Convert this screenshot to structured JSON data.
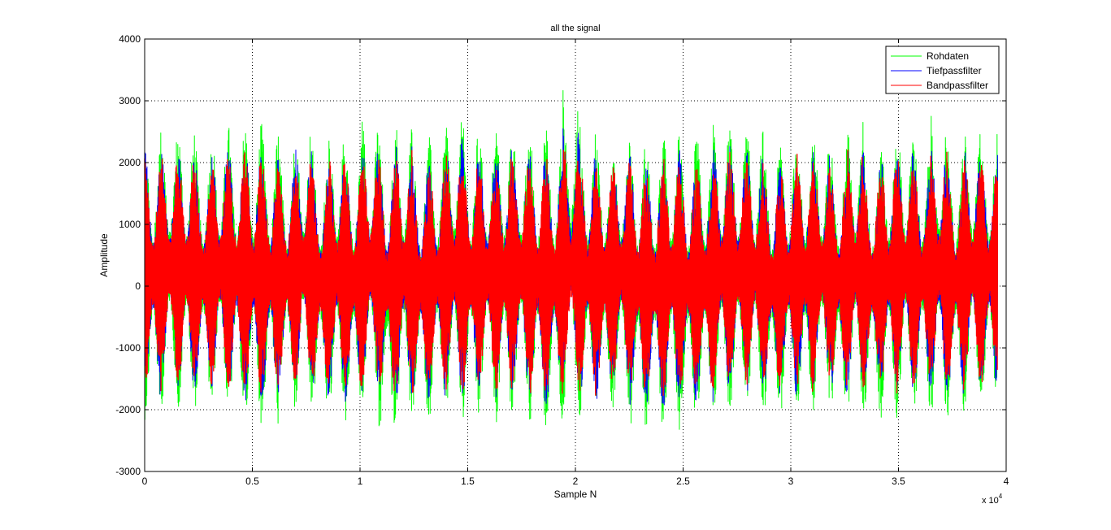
{
  "chart_data": {
    "type": "line",
    "title": "all the signal",
    "xlabel": "Sample N",
    "ylabel": "Amplitude",
    "x_multiplier_base": "x 10",
    "x_multiplier_exp": "4",
    "xlim": [
      0,
      4
    ],
    "ylim": [
      -3000,
      4000
    ],
    "x_ticks": [
      0,
      0.5,
      1,
      1.5,
      2,
      2.5,
      3,
      3.5,
      4
    ],
    "x_tick_labels": [
      "0",
      "0.5",
      "1",
      "1.5",
      "2",
      "2.5",
      "3",
      "3.5",
      "4"
    ],
    "y_ticks": [
      -3000,
      -2000,
      -1000,
      0,
      1000,
      2000,
      3000,
      4000
    ],
    "y_tick_labels": [
      "-3000",
      "-2000",
      "-1000",
      "0",
      "1000",
      "2000",
      "3000",
      "4000"
    ],
    "grid": true,
    "legend_position": "top-right",
    "signal_x_end": 3.96,
    "cycles": 51,
    "series": [
      {
        "name": "Rohdaten",
        "color": "#00ff00",
        "envelope_max": 3100,
        "envelope_min": -2550,
        "typical_peak": 2500,
        "typical_trough": -2150
      },
      {
        "name": "Tiefpassfilter",
        "color": "#0000ff",
        "envelope_max": 2600,
        "envelope_min": -2050,
        "typical_peak": 2250,
        "typical_trough": -1900
      },
      {
        "name": "Bandpassfilter",
        "color": "#ff0000",
        "envelope_max": 2450,
        "envelope_min": -1900,
        "typical_peak": 2150,
        "typical_trough": -1800
      }
    ]
  }
}
